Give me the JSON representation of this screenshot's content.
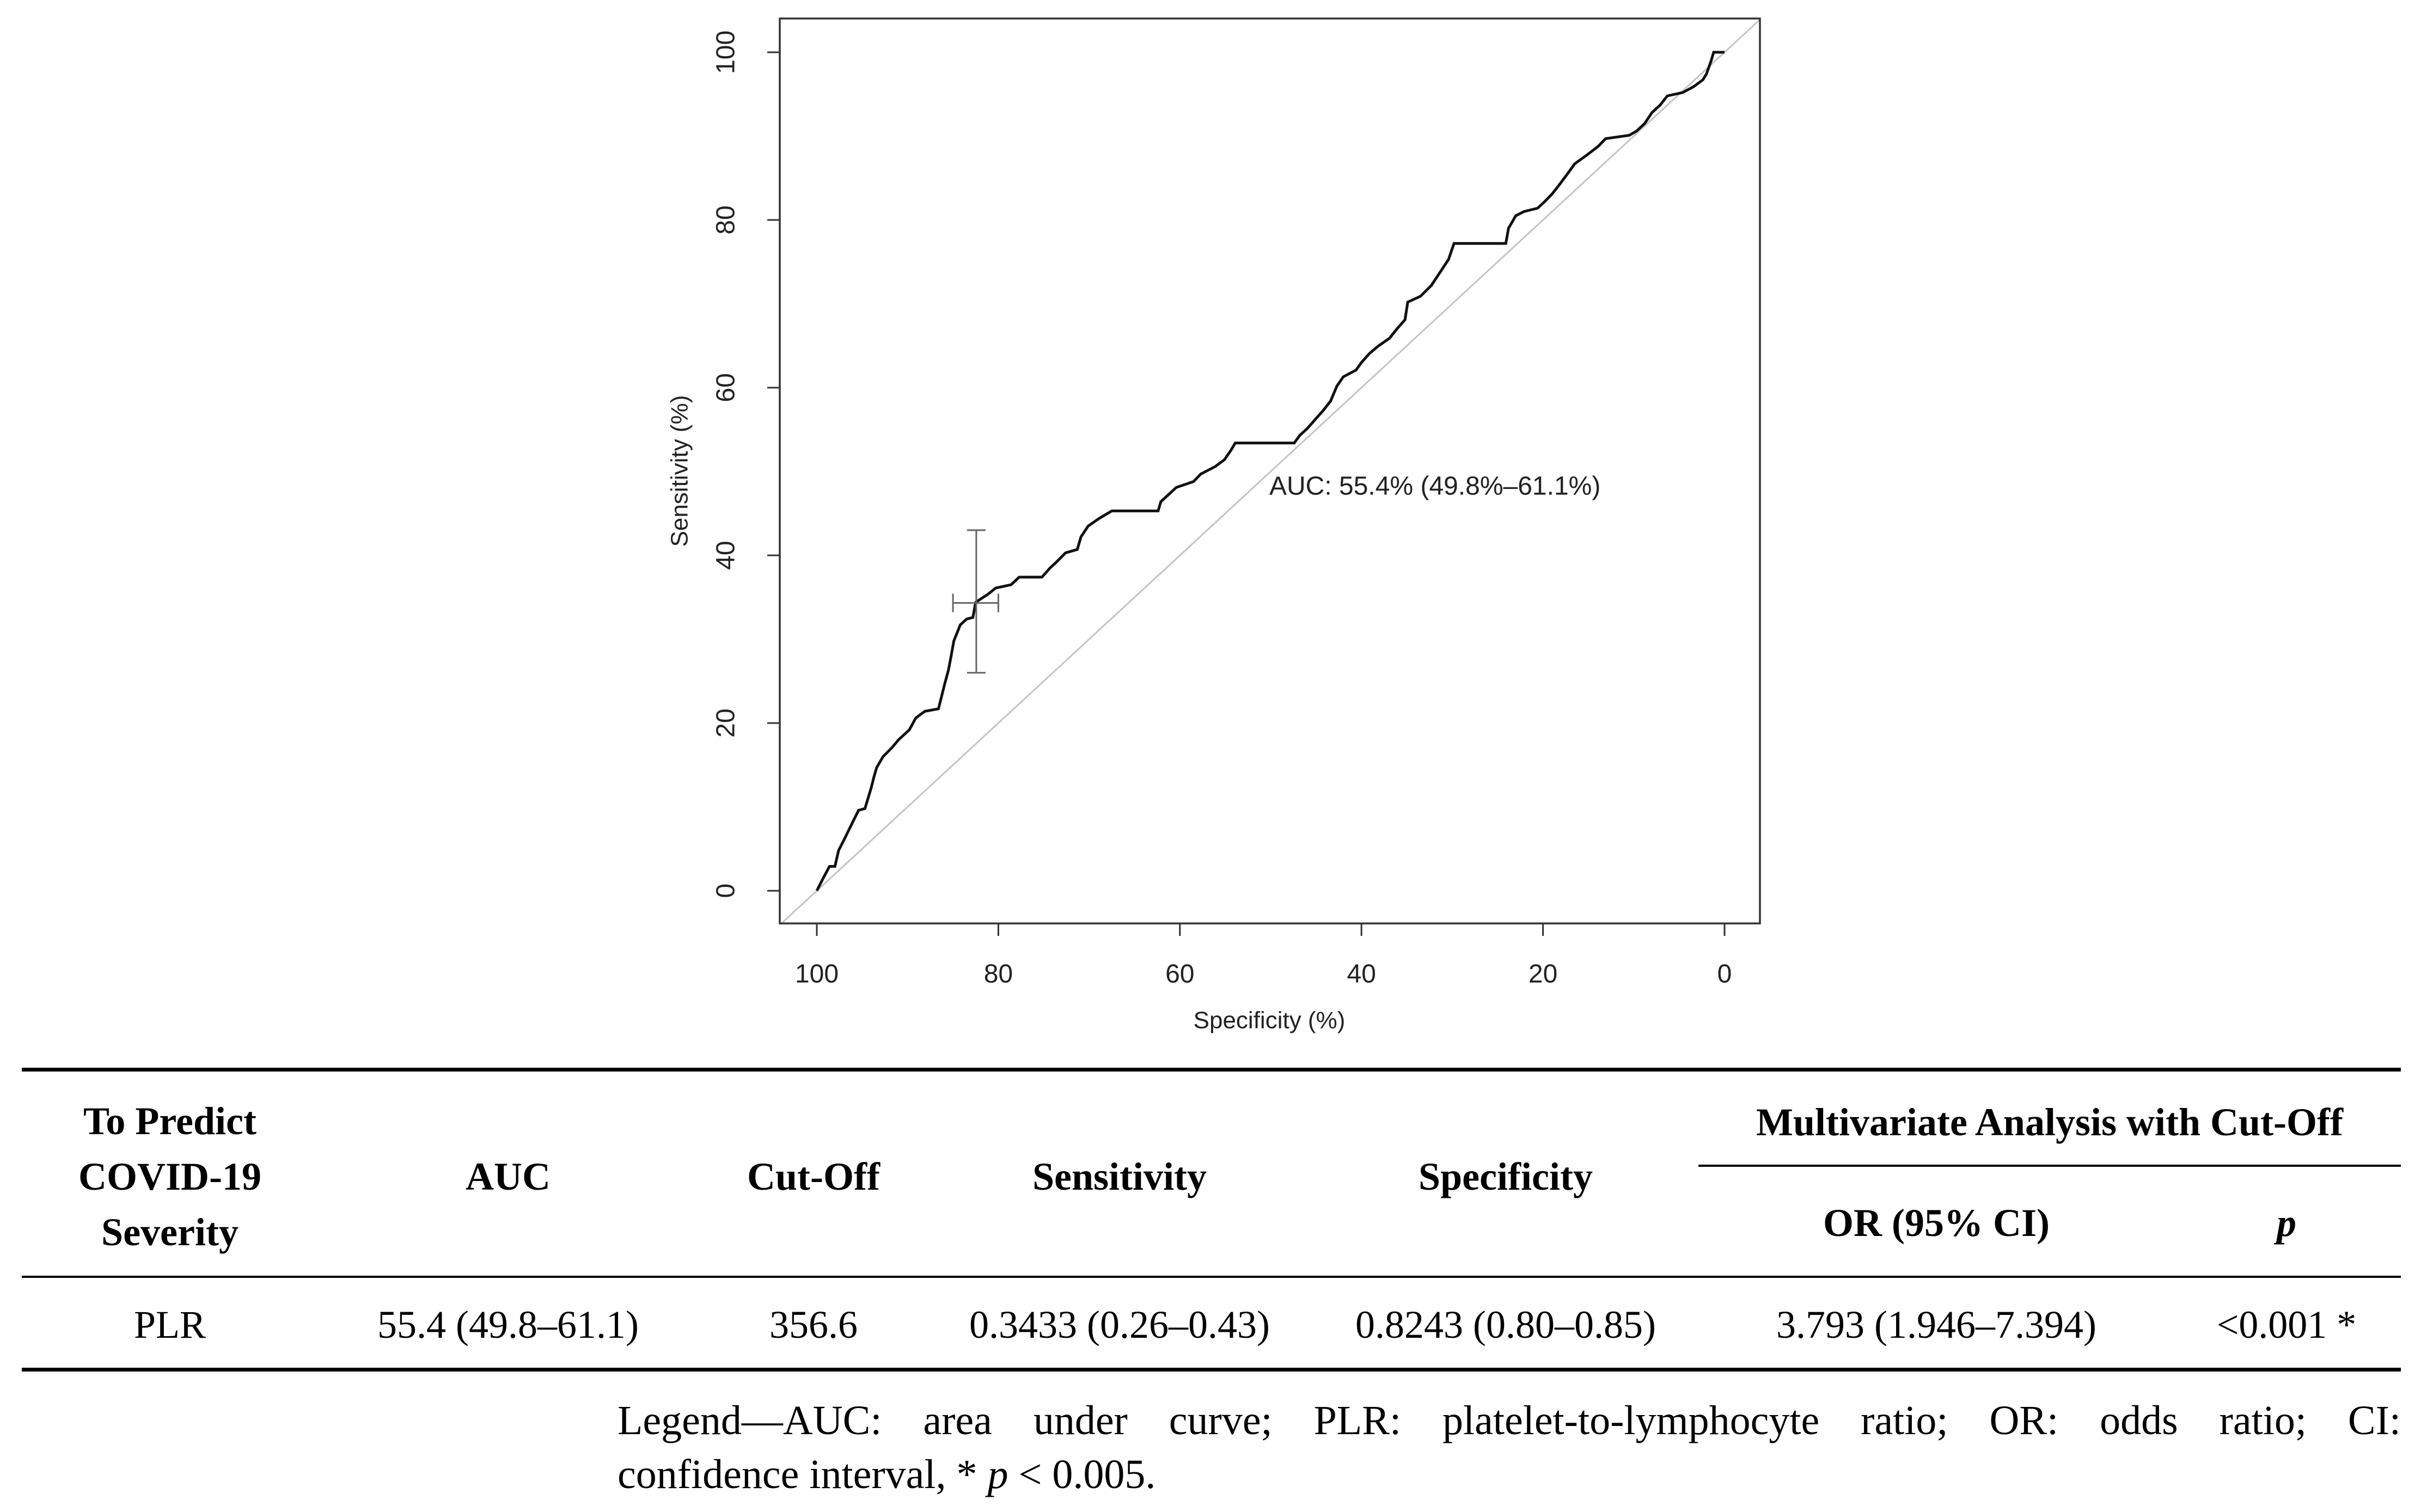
{
  "chart_data": {
    "type": "line",
    "title": "",
    "xlabel": "Specificity (%)",
    "ylabel": "Sensitivity (%)",
    "xlim": [
      100,
      0
    ],
    "ylim": [
      0,
      100
    ],
    "x_ticks": [
      100,
      80,
      60,
      40,
      20,
      0
    ],
    "y_ticks": [
      0,
      20,
      40,
      60,
      80,
      100
    ],
    "grid": false,
    "annotation": "AUC: 55.4% (49.8%–61.1%)",
    "series": [
      {
        "x": [
          100.0,
          99.3,
          98.6,
          98.0,
          97.6,
          96.9,
          96.4,
          95.9,
          95.4,
          94.7,
          94.0,
          93.7,
          93.4,
          92.7,
          91.7,
          91.0,
          89.8,
          89.1,
          88.1,
          86.6,
          86.2,
          85.9,
          85.5,
          85.2,
          84.9,
          84.2,
          83.5,
          82.8,
          82.5,
          81.1,
          80.3,
          78.6,
          77.7,
          75.2,
          74.3,
          73.6,
          72.6,
          71.3,
          70.9,
          70.1,
          68.9,
          67.5,
          62.4,
          62.1,
          61.2,
          60.4,
          58.5,
          57.7,
          56.1,
          55.1,
          54.4,
          53.9,
          47.4,
          46.8,
          45.9,
          45.1,
          44.2,
          43.4,
          42.7,
          42.0,
          40.6,
          40.0,
          39.1,
          38.1,
          36.9,
          36.1,
          35.2,
          34.9,
          33.5,
          32.3,
          31.5,
          30.4,
          29.8,
          24.1,
          23.8,
          23.0,
          22.1,
          20.6,
          19.9,
          19.0,
          18.2,
          17.3,
          16.5,
          15.1,
          13.9,
          13.1,
          10.5,
          9.7,
          8.8,
          8.0,
          7.1,
          6.3,
          4.6,
          3.4,
          2.4,
          2.0,
          1.5,
          1.2,
          0.0
        ],
        "y": [
          0.0,
          1.5,
          2.9,
          2.9,
          4.8,
          6.3,
          7.4,
          8.5,
          9.6,
          9.8,
          12.3,
          13.6,
          14.7,
          16.0,
          17.1,
          18.0,
          19.2,
          20.6,
          21.4,
          21.7,
          23.4,
          24.7,
          26.3,
          28.0,
          29.8,
          31.7,
          32.4,
          32.6,
          34.4,
          35.4,
          36.1,
          36.5,
          37.4,
          37.4,
          38.5,
          39.2,
          40.3,
          40.7,
          42.2,
          43.5,
          44.4,
          45.3,
          45.3,
          46.4,
          47.3,
          48.1,
          48.8,
          49.7,
          50.6,
          51.4,
          52.5,
          53.4,
          53.4,
          54.3,
          55.2,
          56.2,
          57.3,
          58.4,
          60.2,
          61.3,
          62.1,
          63.0,
          64.1,
          65.0,
          65.9,
          67.0,
          68.1,
          70.2,
          70.9,
          72.2,
          73.5,
          75.3,
          77.2,
          77.2,
          79.0,
          80.5,
          81.0,
          81.4,
          82.1,
          83.1,
          84.2,
          85.5,
          86.7,
          87.8,
          88.8,
          89.7,
          90.1,
          90.6,
          91.5,
          92.8,
          93.7,
          94.8,
          95.2,
          95.9,
          96.7,
          97.4,
          98.9,
          100.0,
          100.0
        ]
      }
    ],
    "reference_line": {
      "x": [
        100,
        0
      ],
      "y": [
        0,
        100
      ]
    },
    "threshold_ci": {
      "specificity": 82.43,
      "sensitivity": 34.33,
      "specificity_range": [
        85,
        80
      ],
      "sensitivity_range": [
        26,
        43
      ]
    },
    "colors": {
      "curve": "#111111",
      "reference": "#c4c4c4",
      "ci": "#666666",
      "frame": "#333333"
    }
  },
  "table": {
    "header": {
      "predict_lines": [
        "To Predict",
        "COVID-19",
        "Severity"
      ],
      "auc": "AUC",
      "cutoff": "Cut-Off",
      "sensitivity": "Sensitivity",
      "specificity": "Specificity",
      "multivariate": "Multivariate Analysis with Cut-Off",
      "or_ci": "OR (95% CI)",
      "p": "p"
    },
    "rows": [
      {
        "label": "PLR",
        "auc": "55.4 (49.8–61.1)",
        "cutoff": "356.6",
        "sensitivity": "0.3433 (0.26–0.43)",
        "specificity": "0.8243 (0.80–0.85)",
        "or_ci": "3.793 (1.946–7.394)",
        "p": "<0.001 *"
      }
    ]
  },
  "legend": {
    "line1": "Legend—AUC: area under curve; PLR: platelet-to-lymphocyte ratio; OR: odds ratio; CI:",
    "line2_pre": "confidence interval, *",
    "line2_p": "p",
    "line2_post": "< 0.005."
  }
}
